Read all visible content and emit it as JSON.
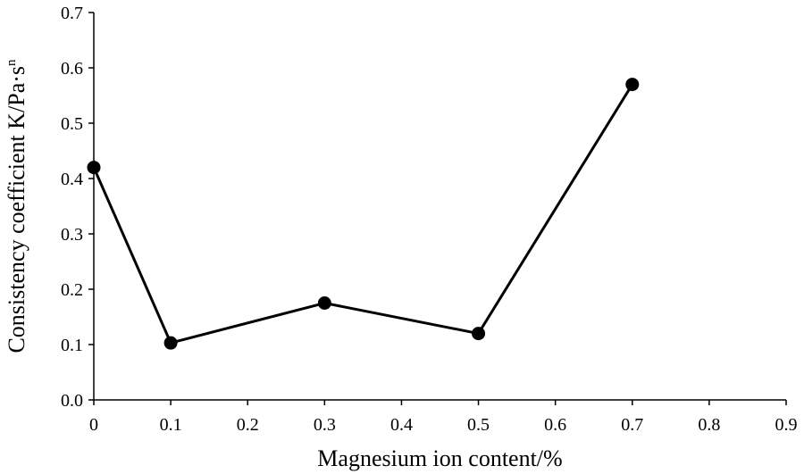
{
  "chart_data": {
    "type": "line",
    "title": "",
    "xlabel": "Magnesium ion content/%",
    "ylabel": "Consistency coefficient K/Pa·s",
    "ylabel_sup": "n",
    "xlim": [
      0,
      0.9
    ],
    "ylim": [
      0,
      0.7
    ],
    "xticks": [
      "0",
      "0.1",
      "0.2",
      "0.3",
      "0.4",
      "0.5",
      "0.6",
      "0.7",
      "0.8",
      "0.9"
    ],
    "yticks": [
      "0.0",
      "0.1",
      "0.2",
      "0.3",
      "0.4",
      "0.5",
      "0.6",
      "0.7"
    ],
    "grid": false,
    "series": [
      {
        "x": [
          0,
          0.1,
          0.3,
          0.5,
          0.7
        ],
        "y": [
          0.42,
          0.103,
          0.175,
          0.12,
          0.57
        ]
      }
    ],
    "colors": {
      "line": "#000000",
      "marker": "#000000"
    }
  }
}
